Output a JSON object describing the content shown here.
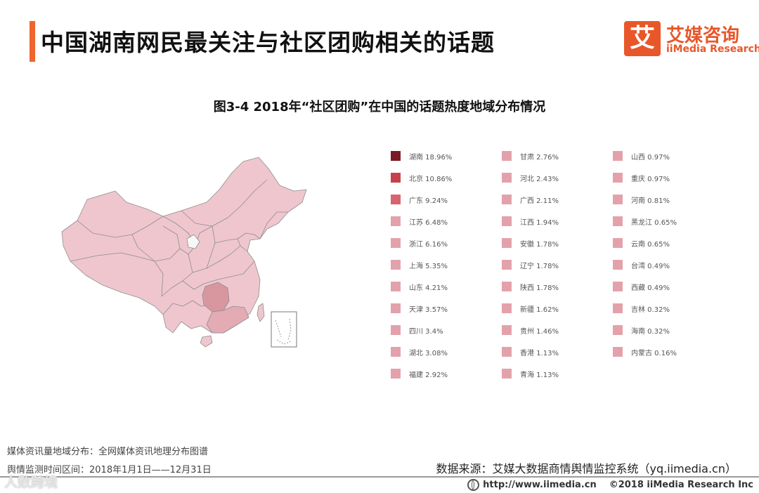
{
  "header": {
    "title": "中国湖南网民最关注与社区团购相关的话题",
    "accent_color": "#f0642d"
  },
  "logo": {
    "mark": "艾",
    "name_cn": "艾媒咨询",
    "name_en": "iiMedia Research",
    "color": "#e8572a"
  },
  "chart_data": {
    "type": "choropleth-map",
    "title": "图3-4 2018年“社区团购”在中国的话题热度地域分布情况",
    "unit": "%",
    "legend_columns": 3,
    "regions": [
      {
        "name": "湖南",
        "value": 18.96,
        "label": "湖南  18.96%",
        "color": "#7b1a24"
      },
      {
        "name": "北京",
        "value": 10.86,
        "label": "北京  10.86%",
        "color": "#c8404c"
      },
      {
        "name": "广东",
        "value": 9.24,
        "label": "广东  9.24%",
        "color": "#d86470"
      },
      {
        "name": "江苏",
        "value": 6.48,
        "label": "江苏  6.48%",
        "color": "#e3a2ab"
      },
      {
        "name": "浙江",
        "value": 6.16,
        "label": "浙江  6.16%",
        "color": "#e3a2ab"
      },
      {
        "name": "上海",
        "value": 5.35,
        "label": "上海  5.35%",
        "color": "#e3a2ab"
      },
      {
        "name": "山东",
        "value": 4.21,
        "label": "山东  4.21%",
        "color": "#e3a2ab"
      },
      {
        "name": "天津",
        "value": 3.57,
        "label": "天津  3.57%",
        "color": "#e3a2ab"
      },
      {
        "name": "四川",
        "value": 3.4,
        "label": "四川  3.4%",
        "color": "#e3a2ab"
      },
      {
        "name": "湖北",
        "value": 3.08,
        "label": "湖北  3.08%",
        "color": "#e3a2ab"
      },
      {
        "name": "福建",
        "value": 2.92,
        "label": "福建  2.92%",
        "color": "#e3a2ab"
      },
      {
        "name": "甘肃",
        "value": 2.76,
        "label": "甘肃  2.76%",
        "color": "#e3a2ab"
      },
      {
        "name": "河北",
        "value": 2.43,
        "label": "河北  2.43%",
        "color": "#e3a2ab"
      },
      {
        "name": "广西",
        "value": 2.11,
        "label": "广西  2.11%",
        "color": "#e3a2ab"
      },
      {
        "name": "江西",
        "value": 1.94,
        "label": "江西  1.94%",
        "color": "#e3a2ab"
      },
      {
        "name": "安徽",
        "value": 1.78,
        "label": "安徽  1.78%",
        "color": "#e3a2ab"
      },
      {
        "name": "辽宁",
        "value": 1.78,
        "label": "辽宁  1.78%",
        "color": "#e3a2ab"
      },
      {
        "name": "陕西",
        "value": 1.78,
        "label": "陕西  1.78%",
        "color": "#e3a2ab"
      },
      {
        "name": "新疆",
        "value": 1.62,
        "label": "新疆  1.62%",
        "color": "#e3a2ab"
      },
      {
        "name": "贵州",
        "value": 1.46,
        "label": "贵州  1.46%",
        "color": "#e3a2ab"
      },
      {
        "name": "香港",
        "value": 1.13,
        "label": "香港  1.13%",
        "color": "#e3a2ab"
      },
      {
        "name": "青海",
        "value": 1.13,
        "label": "青海  1.13%",
        "color": "#e3a2ab"
      },
      {
        "name": "山西",
        "value": 0.97,
        "label": "山西  0.97%",
        "color": "#e3a2ab"
      },
      {
        "name": "重庆",
        "value": 0.97,
        "label": "重庆  0.97%",
        "color": "#e3a2ab"
      },
      {
        "name": "河南",
        "value": 0.81,
        "label": "河南  0.81%",
        "color": "#e3a2ab"
      },
      {
        "name": "黑龙江",
        "value": 0.65,
        "label": "黑龙江  0.65%",
        "color": "#e3a2ab"
      },
      {
        "name": "云南",
        "value": 0.65,
        "label": "云南  0.65%",
        "color": "#e3a2ab"
      },
      {
        "name": "台湾",
        "value": 0.49,
        "label": "台湾  0.49%",
        "color": "#e3a2ab"
      },
      {
        "name": "西藏",
        "value": 0.49,
        "label": "西藏  0.49%",
        "color": "#e3a2ab"
      },
      {
        "name": "吉林",
        "value": 0.32,
        "label": "吉林  0.32%",
        "color": "#e3a2ab"
      },
      {
        "name": "海南",
        "value": 0.32,
        "label": "海南  0.32%",
        "color": "#e3a2ab"
      },
      {
        "name": "内蒙古",
        "value": 0.16,
        "label": "内蒙古  0.16%",
        "color": "#e3a2ab"
      }
    ],
    "map_colors": {
      "base": "#efc6ce",
      "hunan": "#d8979f",
      "guangdong": "#e3abb4",
      "border": "#8d8d8d",
      "no_data": "#f7f7f7"
    }
  },
  "footer": {
    "note1": "媒体资讯量地域分布：全网媒体资讯地理分布图谱",
    "note2": "舆情监测时间区间：2018年1月1日——12月31日",
    "source": "数据来源：艾媒大数据商情舆情监控系统（yq.iimedia.cn）",
    "url": "http://www.iimedia.cn",
    "copyright": "©2018  iiMedia Research  Inc",
    "watermark": "人数跨境",
    "globe_icon": "globe-icon"
  }
}
